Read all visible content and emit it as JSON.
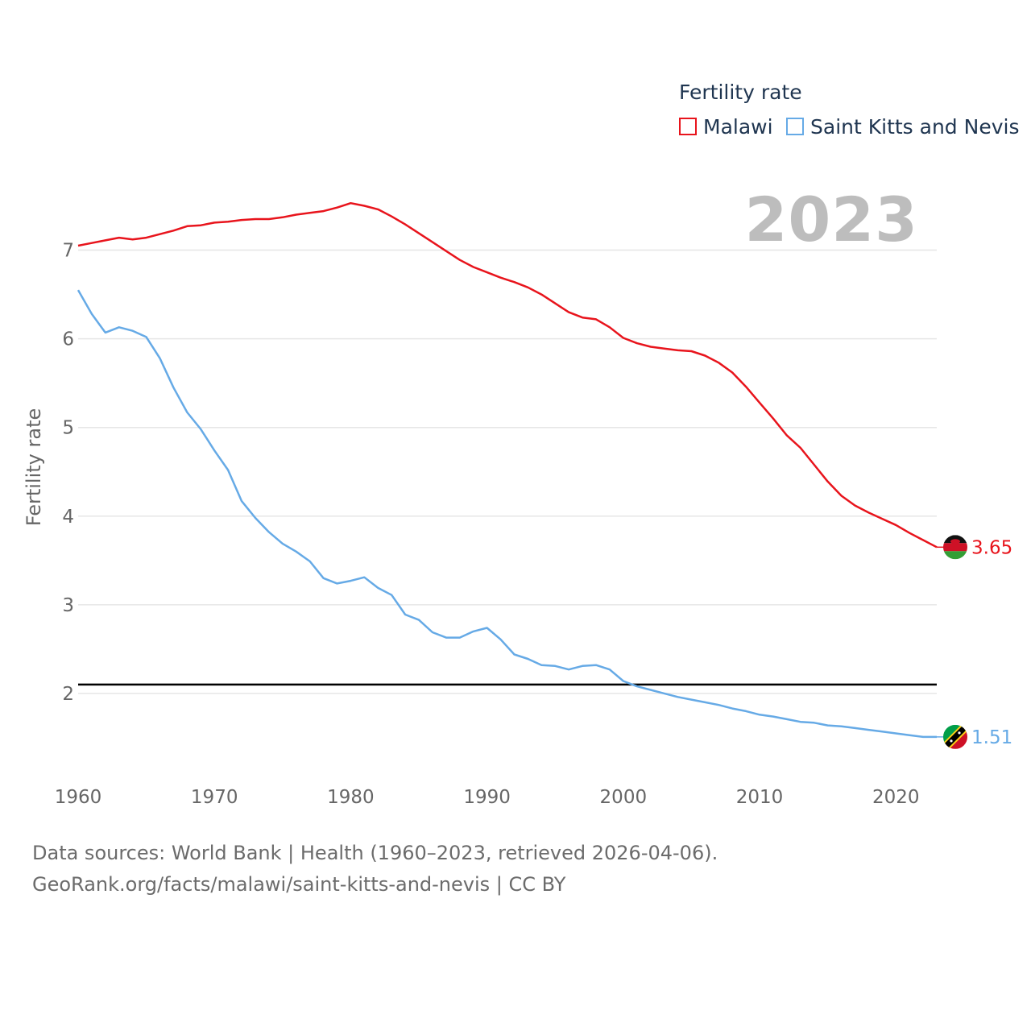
{
  "legend": {
    "title": "Fertility rate",
    "items": [
      {
        "label": "Malawi",
        "color": "#e8141c"
      },
      {
        "label": "Saint Kitts and Nevis",
        "color": "#66aae6"
      }
    ]
  },
  "year_label": "2023",
  "footer": {
    "line1": "Data sources: World Bank | Health (1960–2023, retrieved 2026-04-06).",
    "line2": "GeoRank.org/facts/malawi/saint-kitts-and-nevis | CC BY"
  },
  "chart_data": {
    "type": "line",
    "title": "",
    "xlabel": "",
    "ylabel": "Fertility rate",
    "xlim": [
      1960,
      2023
    ],
    "ylim": [
      1.1,
      7.65
    ],
    "x_ticks": [
      1960,
      1970,
      1980,
      1990,
      2000,
      2010,
      2020
    ],
    "y_ticks": [
      2,
      3,
      4,
      5,
      6,
      7
    ],
    "reference_line": {
      "y": 2.1,
      "color": "#000000"
    },
    "end_labels": [
      "3.65",
      "1.51"
    ],
    "x": [
      1960,
      1961,
      1962,
      1963,
      1964,
      1965,
      1966,
      1967,
      1968,
      1969,
      1970,
      1971,
      1972,
      1973,
      1974,
      1975,
      1976,
      1977,
      1978,
      1979,
      1980,
      1981,
      1982,
      1983,
      1984,
      1985,
      1986,
      1987,
      1988,
      1989,
      1990,
      1991,
      1992,
      1993,
      1994,
      1995,
      1996,
      1997,
      1998,
      1999,
      2000,
      2001,
      2002,
      2003,
      2004,
      2005,
      2006,
      2007,
      2008,
      2009,
      2010,
      2011,
      2012,
      2013,
      2014,
      2015,
      2016,
      2017,
      2018,
      2019,
      2020,
      2021,
      2022,
      2023
    ],
    "series": [
      {
        "name": "Malawi",
        "color": "#e8141c",
        "values": [
          7.05,
          7.08,
          7.11,
          7.14,
          7.12,
          7.14,
          7.18,
          7.22,
          7.27,
          7.28,
          7.31,
          7.32,
          7.34,
          7.35,
          7.35,
          7.37,
          7.4,
          7.42,
          7.44,
          7.48,
          7.53,
          7.5,
          7.46,
          7.38,
          7.29,
          7.19,
          7.09,
          6.99,
          6.89,
          6.81,
          6.75,
          6.69,
          6.64,
          6.58,
          6.5,
          6.4,
          6.3,
          6.24,
          6.22,
          6.13,
          6.01,
          5.95,
          5.91,
          5.89,
          5.87,
          5.86,
          5.81,
          5.73,
          5.62,
          5.46,
          5.28,
          5.1,
          4.91,
          4.77,
          4.58,
          4.39,
          4.23,
          4.12,
          4.04,
          3.97,
          3.9,
          3.81,
          3.73,
          3.65
        ]
      },
      {
        "name": "Saint Kitts and Nevis",
        "color": "#66aae6",
        "values": [
          6.55,
          6.28,
          6.07,
          6.13,
          6.09,
          6.02,
          5.78,
          5.45,
          5.17,
          4.98,
          4.74,
          4.52,
          4.17,
          3.98,
          3.82,
          3.69,
          3.6,
          3.49,
          3.3,
          3.24,
          3.27,
          3.31,
          3.19,
          3.11,
          2.89,
          2.83,
          2.69,
          2.63,
          2.63,
          2.7,
          2.74,
          2.61,
          2.44,
          2.39,
          2.32,
          2.31,
          2.27,
          2.31,
          2.32,
          2.27,
          2.14,
          2.08,
          2.04,
          2.0,
          1.96,
          1.93,
          1.9,
          1.87,
          1.83,
          1.8,
          1.76,
          1.74,
          1.71,
          1.68,
          1.67,
          1.64,
          1.63,
          1.61,
          1.59,
          1.57,
          1.55,
          1.53,
          1.51,
          1.51
        ]
      }
    ]
  }
}
